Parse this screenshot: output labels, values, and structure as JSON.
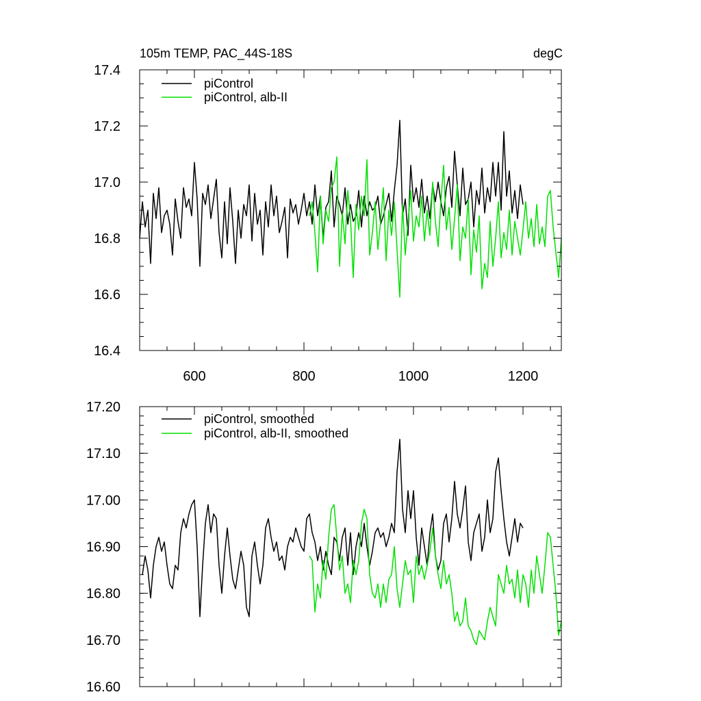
{
  "colors": {
    "series_a": "#000000",
    "series_b": "#00e000",
    "axis": "#000000",
    "background": "#ffffff"
  },
  "chart_data": [
    {
      "type": "line",
      "title": "105m TEMP, PAC_44S-18S",
      "units": "degC",
      "xlabel": "",
      "ylabel": "",
      "xlim": [
        500,
        1270
      ],
      "ylim": [
        16.4,
        17.4
      ],
      "xticks": [
        600,
        800,
        1000,
        1200
      ],
      "xtick_labels": [
        "600",
        "800",
        "1000",
        "1200"
      ],
      "yticks": [
        16.4,
        16.6,
        16.8,
        17.0,
        17.2,
        17.4
      ],
      "ytick_labels": [
        "16.4",
        "16.6",
        "16.8",
        "17.0",
        "17.2",
        "17.4"
      ],
      "grid": false,
      "legend_position": "top-left",
      "series": [
        {
          "name": "piControl",
          "color": "#000000",
          "x": [
            500,
            505,
            510,
            515,
            520,
            525,
            530,
            535,
            540,
            545,
            550,
            555,
            560,
            565,
            570,
            575,
            580,
            585,
            590,
            595,
            600,
            605,
            610,
            615,
            620,
            625,
            630,
            635,
            640,
            645,
            650,
            655,
            660,
            665,
            670,
            675,
            680,
            685,
            690,
            695,
            700,
            705,
            710,
            715,
            720,
            725,
            730,
            735,
            740,
            745,
            750,
            755,
            760,
            765,
            770,
            775,
            780,
            785,
            790,
            795,
            800,
            805,
            810,
            815,
            820,
            825,
            830,
            835,
            840,
            845,
            850,
            855,
            860,
            865,
            870,
            875,
            880,
            885,
            890,
            895,
            900,
            905,
            910,
            915,
            920,
            925,
            930,
            935,
            940,
            945,
            950,
            955,
            960,
            965,
            970,
            975,
            980,
            985,
            990,
            995,
            1000,
            1005,
            1010,
            1015,
            1020,
            1025,
            1030,
            1035,
            1040,
            1045,
            1050,
            1055,
            1060,
            1065,
            1070,
            1075,
            1080,
            1085,
            1090,
            1095,
            1100,
            1105,
            1110,
            1115,
            1120,
            1125,
            1130,
            1135,
            1140,
            1145,
            1150,
            1155,
            1160,
            1165,
            1170,
            1175,
            1180,
            1185,
            1190,
            1195,
            1200
          ],
          "values": [
            16.8,
            16.93,
            16.84,
            16.9,
            16.71,
            16.96,
            16.87,
            16.98,
            16.82,
            16.88,
            16.9,
            16.85,
            16.74,
            16.94,
            16.86,
            16.8,
            16.98,
            16.91,
            16.94,
            16.88,
            17.07,
            16.94,
            16.7,
            16.96,
            16.92,
            16.99,
            16.87,
            16.94,
            17.01,
            16.82,
            16.73,
            16.93,
            16.78,
            16.98,
            16.86,
            16.71,
            16.9,
            16.8,
            16.92,
            16.88,
            16.99,
            16.79,
            16.96,
            16.85,
            16.9,
            16.74,
            16.93,
            16.84,
            16.99,
            16.88,
            16.95,
            16.82,
            16.86,
            16.91,
            16.73,
            16.94,
            16.89,
            16.92,
            16.85,
            16.9,
            16.96,
            16.88,
            16.93,
            16.85,
            16.99,
            16.88,
            16.95,
            16.8,
            16.91,
            16.93,
            17.04,
            16.84,
            16.95,
            16.92,
            16.88,
            16.98,
            16.85,
            16.92,
            16.86,
            16.88,
            16.97,
            16.84,
            16.95,
            16.88,
            16.93,
            16.9,
            16.91,
            16.95,
            16.85,
            16.88,
            16.92,
            16.96,
            16.86,
            16.97,
            17.06,
            17.22,
            16.88,
            16.94,
            16.81,
            17.06,
            16.93,
            16.98,
            16.91,
            17.01,
            16.89,
            16.95,
            16.87,
            16.99,
            16.93,
            17.0,
            16.93,
            16.88,
            16.98,
            17.02,
            16.91,
            17.11,
            16.99,
            16.88,
            17.05,
            16.92,
            16.94,
            17.0,
            16.84,
            16.97,
            16.92,
            17.05,
            16.89,
            16.98,
            16.93,
            17.07,
            16.95,
            17.07,
            16.9,
            17.18,
            16.95,
            17.04,
            16.89,
            16.97,
            16.87,
            16.99,
            16.92
          ],
          "max": 17.22,
          "min": 16.67
        },
        {
          "name": "piControl, alb-II",
          "color": "#00e000",
          "x": [
            810,
            815,
            820,
            825,
            830,
            835,
            840,
            845,
            850,
            855,
            860,
            865,
            870,
            875,
            880,
            885,
            890,
            895,
            900,
            905,
            910,
            915,
            920,
            925,
            930,
            935,
            940,
            945,
            950,
            955,
            960,
            965,
            970,
            975,
            980,
            985,
            990,
            995,
            1000,
            1005,
            1010,
            1015,
            1020,
            1025,
            1030,
            1035,
            1040,
            1045,
            1050,
            1055,
            1060,
            1065,
            1070,
            1075,
            1080,
            1085,
            1090,
            1095,
            1100,
            1105,
            1110,
            1115,
            1120,
            1125,
            1130,
            1135,
            1140,
            1145,
            1150,
            1155,
            1160,
            1165,
            1170,
            1175,
            1180,
            1185,
            1190,
            1195,
            1200,
            1205,
            1210,
            1215,
            1220,
            1225,
            1230,
            1235,
            1240,
            1245,
            1250,
            1255,
            1260,
            1265,
            1270
          ],
          "values": [
            16.88,
            16.93,
            16.82,
            16.68,
            16.95,
            16.78,
            16.9,
            16.86,
            16.98,
            17.0,
            17.09,
            16.7,
            16.89,
            16.78,
            16.97,
            16.87,
            16.66,
            16.92,
            16.83,
            16.95,
            16.88,
            17.08,
            16.74,
            16.82,
            16.93,
            16.76,
            16.86,
            16.98,
            16.72,
            16.9,
            16.81,
            16.93,
            16.76,
            16.59,
            16.92,
            16.74,
            16.86,
            16.97,
            16.79,
            16.88,
            16.84,
            16.95,
            16.79,
            16.9,
            16.81,
            17.0,
            16.86,
            16.77,
            16.93,
            17.06,
            16.83,
            16.91,
            16.76,
            16.87,
            16.99,
            16.72,
            16.84,
            16.8,
            16.94,
            16.67,
            16.83,
            16.75,
            16.88,
            16.62,
            16.71,
            16.66,
            16.86,
            16.7,
            16.8,
            16.93,
            16.73,
            16.82,
            16.76,
            16.9,
            16.74,
            16.86,
            16.8,
            16.74,
            16.83,
            16.93,
            16.8,
            16.87,
            16.77,
            16.92,
            16.78,
            16.84,
            16.77,
            16.95,
            16.97,
            16.84,
            16.75,
            16.66,
            16.8
          ],
          "max": 17.09,
          "min": 16.59
        }
      ]
    },
    {
      "type": "line",
      "title": "",
      "xlabel": "",
      "ylabel": "",
      "xlim": [
        500,
        1270
      ],
      "ylim": [
        16.6,
        17.2
      ],
      "xticks": [
        600,
        800,
        1000,
        1200
      ],
      "yticks": [
        16.6,
        16.7,
        16.8,
        16.9,
        17.0,
        17.1,
        17.2
      ],
      "ytick_labels": [
        "16.60",
        "16.70",
        "16.80",
        "16.90",
        "17.00",
        "17.10",
        "17.20"
      ],
      "grid": false,
      "legend_position": "top-left",
      "series": [
        {
          "name": "piControl, smoothed",
          "color": "#000000",
          "x": [
            505,
            510,
            515,
            520,
            525,
            530,
            535,
            540,
            545,
            550,
            555,
            560,
            565,
            570,
            575,
            580,
            585,
            590,
            595,
            600,
            605,
            610,
            615,
            620,
            625,
            630,
            635,
            640,
            645,
            650,
            655,
            660,
            665,
            670,
            675,
            680,
            685,
            690,
            695,
            700,
            705,
            710,
            715,
            720,
            725,
            730,
            735,
            740,
            745,
            750,
            755,
            760,
            765,
            770,
            775,
            780,
            785,
            790,
            795,
            800,
            805,
            810,
            815,
            820,
            825,
            830,
            835,
            840,
            845,
            850,
            855,
            860,
            865,
            870,
            875,
            880,
            885,
            890,
            895,
            900,
            905,
            910,
            915,
            920,
            925,
            930,
            935,
            940,
            945,
            950,
            955,
            960,
            965,
            970,
            975,
            980,
            985,
            990,
            995,
            1000,
            1005,
            1010,
            1015,
            1020,
            1025,
            1030,
            1035,
            1040,
            1045,
            1050,
            1055,
            1060,
            1065,
            1070,
            1075,
            1080,
            1085,
            1090,
            1095,
            1100,
            1105,
            1110,
            1115,
            1120,
            1125,
            1130,
            1135,
            1140,
            1145,
            1150,
            1155,
            1160,
            1165,
            1170,
            1175,
            1180,
            1185,
            1190,
            1195,
            1200
          ],
          "values": [
            16.84,
            16.88,
            16.85,
            16.79,
            16.86,
            16.9,
            16.92,
            16.89,
            16.91,
            16.86,
            16.82,
            16.81,
            16.86,
            16.85,
            16.93,
            16.96,
            16.94,
            16.97,
            16.99,
            17.0,
            16.9,
            16.75,
            16.86,
            16.95,
            16.99,
            16.93,
            16.97,
            16.96,
            16.86,
            16.8,
            16.88,
            16.94,
            16.88,
            16.83,
            16.81,
            16.85,
            16.89,
            16.86,
            16.77,
            16.75,
            16.88,
            16.91,
            16.86,
            16.82,
            16.86,
            16.94,
            16.96,
            16.92,
            16.89,
            16.91,
            16.87,
            16.88,
            16.85,
            16.9,
            16.92,
            16.91,
            16.94,
            16.92,
            16.9,
            16.89,
            16.96,
            16.97,
            16.93,
            16.91,
            16.87,
            16.9,
            16.85,
            16.89,
            16.86,
            16.84,
            16.92,
            16.91,
            16.87,
            16.92,
            16.94,
            16.86,
            16.93,
            16.84,
            16.9,
            16.93,
            16.9,
            16.95,
            16.9,
            16.86,
            16.89,
            16.93,
            16.94,
            16.92,
            16.93,
            16.9,
            16.92,
            16.95,
            16.93,
            17.06,
            17.13,
            16.98,
            16.93,
            17.02,
            16.96,
            17.02,
            16.92,
            16.86,
            16.94,
            16.9,
            16.86,
            16.93,
            16.97,
            16.88,
            16.85,
            16.87,
            16.95,
            16.97,
            16.91,
            16.96,
            17.04,
            16.97,
            16.94,
            16.98,
            17.03,
            16.91,
            16.87,
            16.93,
            16.95,
            16.97,
            16.89,
            16.92,
            17.0,
            16.93,
            16.96,
            17.06,
            17.09,
            17.02,
            16.96,
            16.91,
            16.88,
            16.92,
            16.96,
            16.91,
            16.95,
            16.94
          ],
          "max": 17.13,
          "min": 16.74
        },
        {
          "name": "piControl, alb-II, smoothed",
          "color": "#00e000",
          "x": [
            810,
            815,
            820,
            825,
            830,
            835,
            840,
            845,
            850,
            855,
            860,
            865,
            870,
            875,
            880,
            885,
            890,
            895,
            900,
            905,
            910,
            915,
            920,
            925,
            930,
            935,
            940,
            945,
            950,
            955,
            960,
            965,
            970,
            975,
            980,
            985,
            990,
            995,
            1000,
            1005,
            1010,
            1015,
            1020,
            1025,
            1030,
            1035,
            1040,
            1045,
            1050,
            1055,
            1060,
            1065,
            1070,
            1075,
            1080,
            1085,
            1090,
            1095,
            1100,
            1105,
            1110,
            1115,
            1120,
            1125,
            1130,
            1135,
            1140,
            1145,
            1150,
            1155,
            1160,
            1165,
            1170,
            1175,
            1180,
            1185,
            1190,
            1195,
            1200,
            1205,
            1210,
            1215,
            1220,
            1225,
            1230,
            1235,
            1240,
            1245,
            1250,
            1255,
            1260,
            1265,
            1270
          ],
          "values": [
            16.88,
            16.87,
            16.76,
            16.82,
            16.79,
            16.87,
            16.83,
            16.92,
            16.98,
            16.99,
            16.92,
            16.85,
            16.88,
            16.8,
            16.82,
            16.78,
            16.87,
            16.84,
            16.87,
            16.95,
            16.98,
            16.96,
            16.84,
            16.8,
            16.79,
            16.82,
            16.77,
            16.82,
            16.78,
            16.83,
            16.84,
            16.9,
            16.81,
            16.77,
            16.82,
            16.87,
            16.84,
            16.85,
            16.78,
            16.88,
            16.84,
            16.86,
            16.83,
            16.86,
            16.89,
            16.94,
            16.88,
            16.84,
            16.81,
            16.87,
            16.82,
            16.84,
            16.8,
            16.74,
            16.76,
            16.73,
            16.74,
            16.79,
            16.73,
            16.72,
            16.7,
            16.69,
            16.72,
            16.71,
            16.7,
            16.74,
            16.77,
            16.75,
            16.73,
            16.84,
            16.82,
            16.8,
            16.86,
            16.82,
            16.83,
            16.79,
            16.85,
            16.78,
            16.84,
            16.82,
            16.77,
            16.85,
            16.8,
            16.88,
            16.84,
            16.8,
            16.86,
            16.93,
            16.92,
            16.86,
            16.8,
            16.71,
            16.74
          ],
          "max": 16.99,
          "min": 16.68
        }
      ]
    }
  ]
}
